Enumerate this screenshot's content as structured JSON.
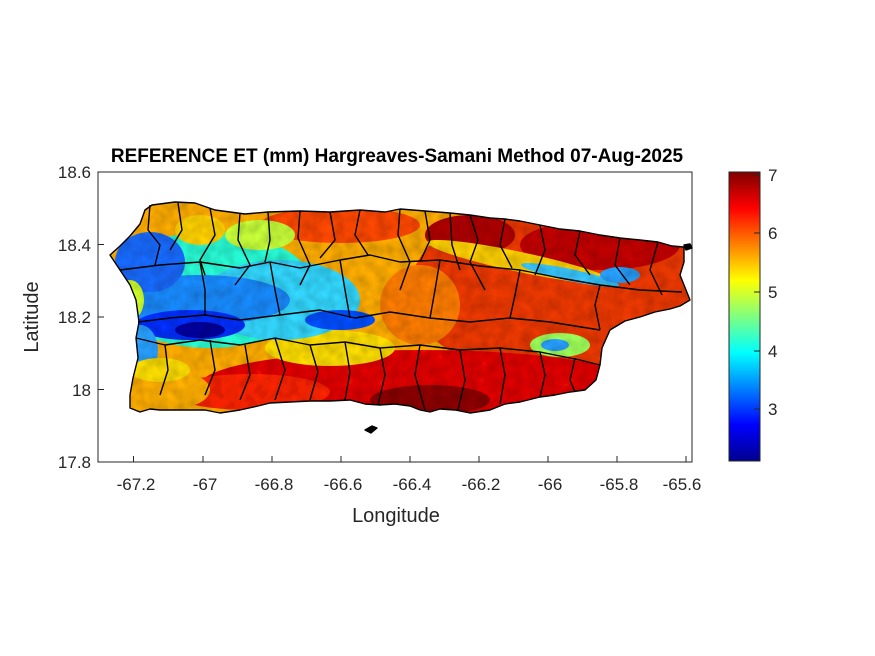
{
  "map": {
    "title": "REFERENCE ET (mm) Hargreaves-Samani Method  07-Aug-2025",
    "xlabel": "Longitude",
    "ylabel": "Latitude",
    "xlim": [
      -67.3,
      -65.58
    ],
    "ylim": [
      17.8,
      18.6
    ],
    "xticks": [
      -67.2,
      -67,
      -66.8,
      -66.6,
      -66.4,
      -66.2,
      -66,
      -65.8,
      -65.6
    ],
    "xtick_labels": [
      "-67.2",
      "-67",
      "-66.8",
      "-66.6",
      "-66.4",
      "-66.2",
      "-66",
      "-65.8",
      "-65.6"
    ],
    "yticks": [
      17.8,
      18,
      18.2,
      18.4,
      18.6
    ],
    "ytick_labels": [
      "17.8",
      "18",
      "18.2",
      "18.4",
      "18.6"
    ],
    "region": "Puerto Rico",
    "boundary_color": "#000000",
    "colormap": "jet",
    "colorbar": {
      "clim": [
        2.1,
        7.05
      ],
      "ticks": [
        3,
        4,
        5,
        6,
        7
      ],
      "tick_labels": [
        "3",
        "4",
        "5",
        "6",
        "7"
      ]
    },
    "field_pattern": {
      "low_band": "central-western mountains (approx. 2.5–4 mm)",
      "high_areas": "south coast and northeast (approx. 6–7 mm)"
    }
  }
}
